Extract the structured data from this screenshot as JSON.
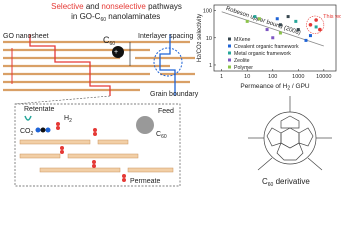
{
  "diagram": {
    "title": {
      "line1": [
        "Selective",
        " and ",
        "nonselective",
        " pathways"
      ],
      "line2": [
        "in GO-C",
        "60",
        " nanolaminates"
      ]
    },
    "labels": {
      "go_nanosheet": "GO nanosheet",
      "c60": [
        "C",
        "60"
      ],
      "interlayer": "Interlayer spacing",
      "grain": "Grain boundary",
      "retentate": "Retentate",
      "co2": [
        "CO",
        "2"
      ],
      "h2": [
        "H",
        "2"
      ],
      "feed": "Feed",
      "c60_zoom": [
        "C",
        "60"
      ],
      "permeate": "Permeate",
      "derivative": [
        "C",
        "60",
        " derivative"
      ]
    }
  },
  "chart_data": {
    "type": "scatter",
    "y_label": [
      "H",
      "2",
      "/CO",
      "2",
      " selectivity"
    ],
    "x_label": [
      "Permeance of H",
      "2",
      " / GPU"
    ],
    "xscale": "log",
    "yscale": "log",
    "xlim": [
      0.5,
      30000
    ],
    "ylim": [
      0.6,
      160
    ],
    "xticks": [
      1,
      10,
      100,
      1000,
      10000
    ],
    "yticks": [
      1,
      10,
      100
    ],
    "legend": "lower-right",
    "series": [
      {
        "name": "MXene",
        "color": "#37474f",
        "x": [
          200,
          1000,
          400
        ],
        "values": [
          30,
          20,
          60
        ]
      },
      {
        "name": "Covalent organic framework",
        "color": "#1e63d6",
        "x": [
          3000,
          150,
          2000
        ],
        "values": [
          12,
          50,
          8
        ]
      },
      {
        "name": "Metal organic framework",
        "color": "#26a69a",
        "x": [
          20,
          800,
          5000
        ],
        "values": [
          60,
          40,
          25
        ]
      },
      {
        "name": "Zeolite",
        "color": "#7e57c2",
        "x": [
          100,
          60
        ],
        "values": [
          10,
          20
        ]
      },
      {
        "name": "Polymer",
        "color": "#8bc34a",
        "x": [
          30,
          10,
          200
        ],
        "values": [
          50,
          40,
          15
        ]
      }
    ],
    "upper_bound": {
      "label": "Robeson upper bound (2008)",
      "color": "#888888",
      "x": [
        1,
        10000
      ],
      "values": [
        90,
        5
      ]
    },
    "highlight": {
      "label": "This work",
      "color": "#e53935",
      "x": [
        3000,
        5000,
        7000
      ],
      "values": [
        30,
        45,
        20
      ]
    }
  }
}
